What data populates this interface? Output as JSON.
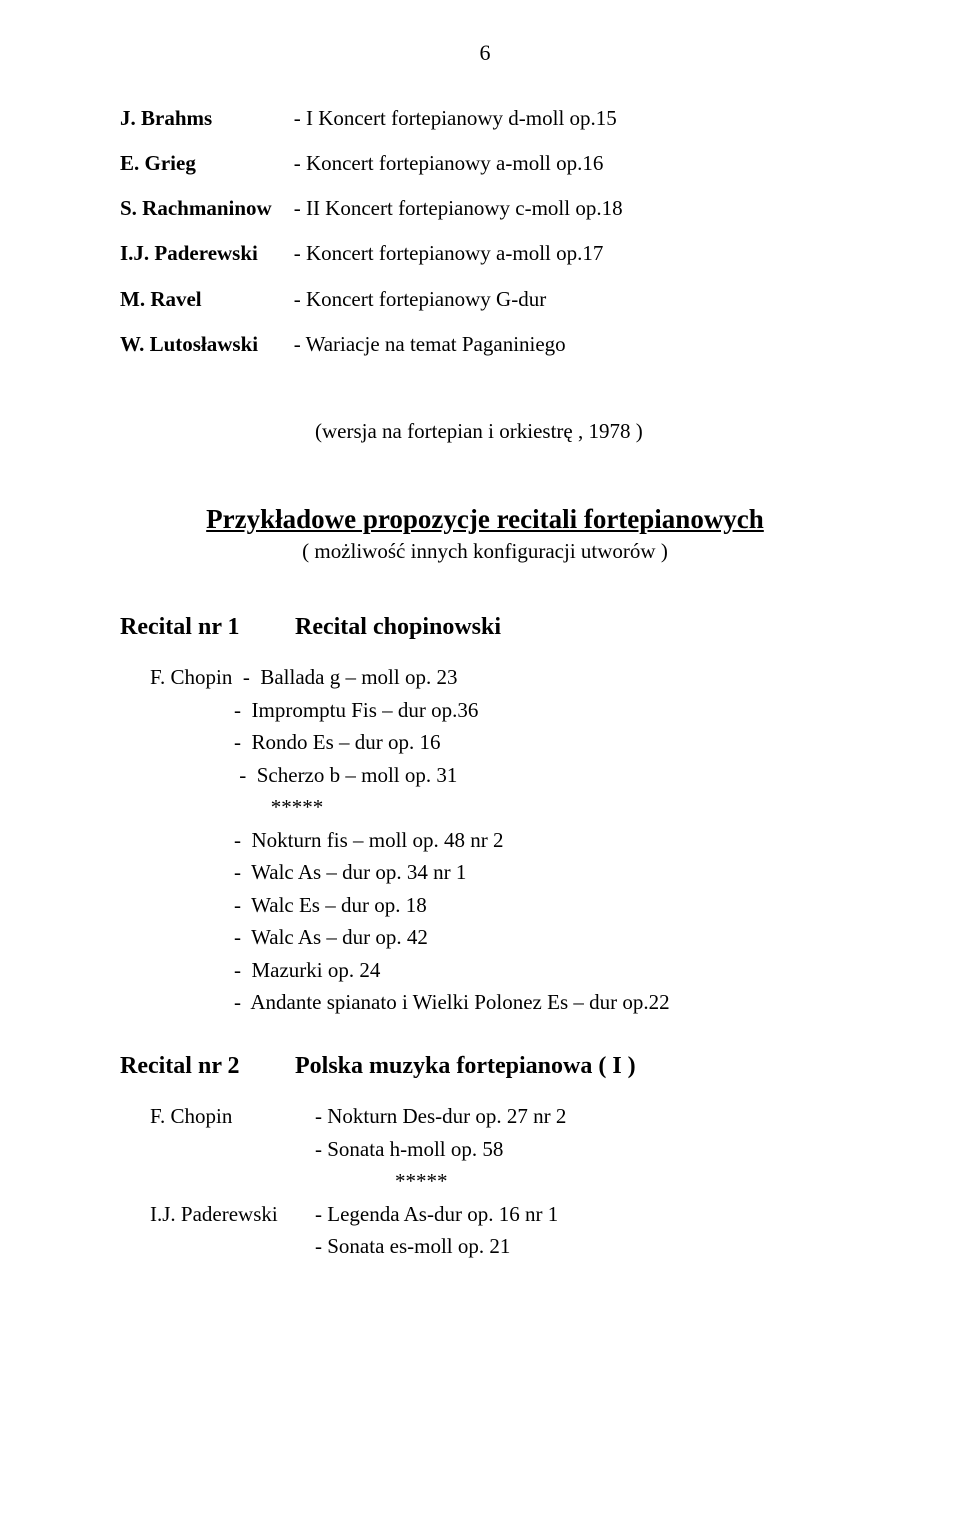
{
  "page_number": "6",
  "composers": [
    {
      "name": "J. Brahms",
      "work": "-  I  Koncert fortepianowy d-moll op.15"
    },
    {
      "name": "E. Grieg",
      "work": "-  Koncert fortepianowy a-moll op.16"
    },
    {
      "name": "S. Rachmaninow",
      "work": "-  II  Koncert fortepianowy c-moll  op.18"
    },
    {
      "name": "I.J. Paderewski",
      "work": "-  Koncert fortepianowy a-moll op.17"
    },
    {
      "name": "M. Ravel",
      "work": "-  Koncert fortepianowy G-dur"
    },
    {
      "name": "W. Lutosławski",
      "work": "-  Wariacje na temat Paganiniego"
    }
  ],
  "lutoslawski_cont": "(wersja na fortepian i orkiestrę , 1978 )",
  "main_heading": "Przykładowe propozycje recitali fortepianowych",
  "sub_heading": "( możliwość innych konfiguracji utworów )",
  "recital1": {
    "nr": "Recital nr 1",
    "title": "Recital chopinowski",
    "lines": [
      "F. Chopin  -  Ballada g – moll op. 23",
      "                -  Impromptu Fis – dur op.36",
      "                -  Rondo Es – dur op. 16",
      "                 -  Scherzo b – moll op. 31",
      "                       *****",
      "                -  Nokturn fis – moll op. 48 nr 2",
      "                -  Walc As – dur op. 34 nr 1",
      "                -  Walc Es – dur op. 18",
      "                -  Walc As – dur op. 42",
      "                -  Mazurki op. 24",
      "                -  Andante spianato i Wielki Polonez Es – dur op.22"
    ]
  },
  "recital2": {
    "nr": "Recital nr 2",
    "title": "Polska muzyka fortepianowa ( I )",
    "entries": [
      {
        "name": "F. Chopin",
        "works": [
          "- Nokturn Des-dur op. 27 nr 2",
          "- Sonata h-moll op. 58"
        ]
      }
    ],
    "stars": "*****",
    "entries2": [
      {
        "name": "I.J. Paderewski",
        "works": [
          "- Legenda As-dur op. 16 nr 1",
          "- Sonata es-moll op. 21"
        ]
      }
    ]
  }
}
